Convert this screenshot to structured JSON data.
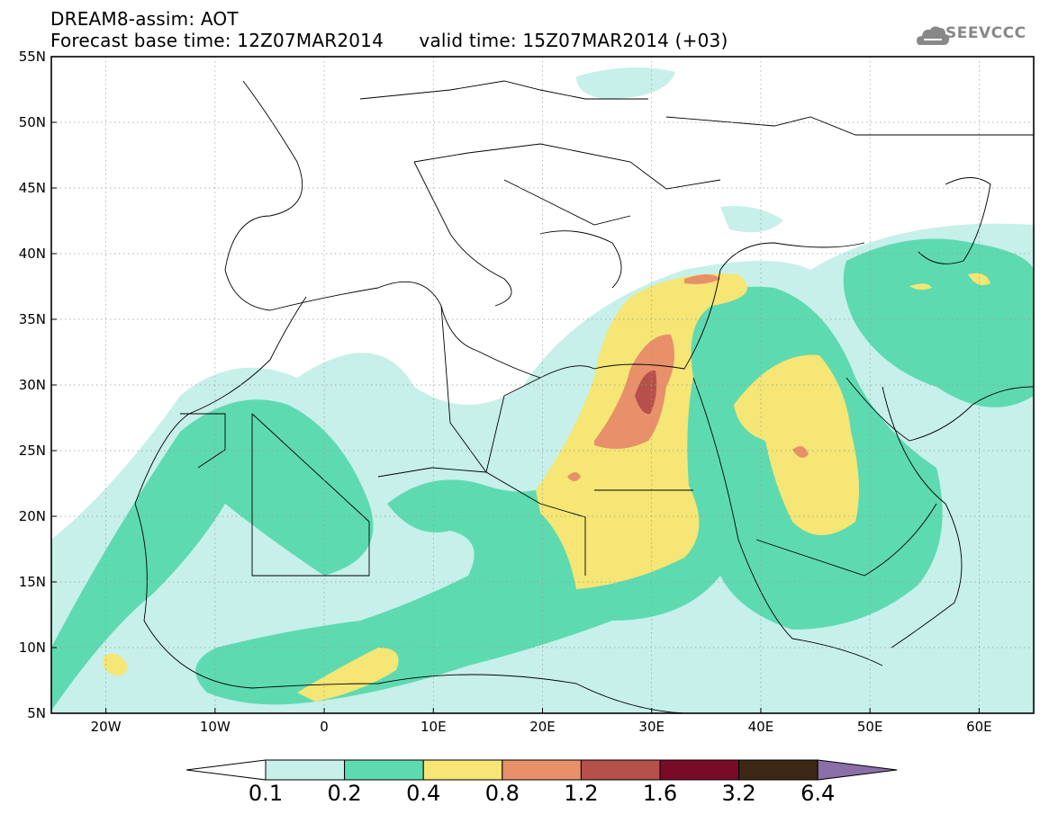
{
  "header": {
    "title": "DREAM8-assim: AOT",
    "base_time": "Forecast base time: 12Z07MAR2014",
    "valid_time": "valid time: 15Z07MAR2014 (+03)"
  },
  "logo": {
    "text": "SEEVCCC",
    "icon": "cloud-icon"
  },
  "map": {
    "lat_labels": [
      "55N",
      "50N",
      "45N",
      "40N",
      "35N",
      "30N",
      "25N",
      "20N",
      "15N",
      "10N",
      "5N"
    ],
    "lon_labels": [
      "20W",
      "10W",
      "0",
      "10E",
      "20E",
      "30E",
      "40E",
      "50E",
      "60E"
    ],
    "lon_range": [
      -25,
      65
    ],
    "lat_range": [
      5,
      55
    ]
  },
  "colorbar": {
    "labels": [
      "0.1",
      "0.2",
      "0.4",
      "0.8",
      "1.2",
      "1.6",
      "3.2",
      "6.4"
    ],
    "colors": [
      "#ffffff",
      "#c6f0e9",
      "#5edab0",
      "#f5e675",
      "#e8906a",
      "#b5514a",
      "#7a0b28",
      "#3c2814",
      "#8a6fa8"
    ]
  }
}
